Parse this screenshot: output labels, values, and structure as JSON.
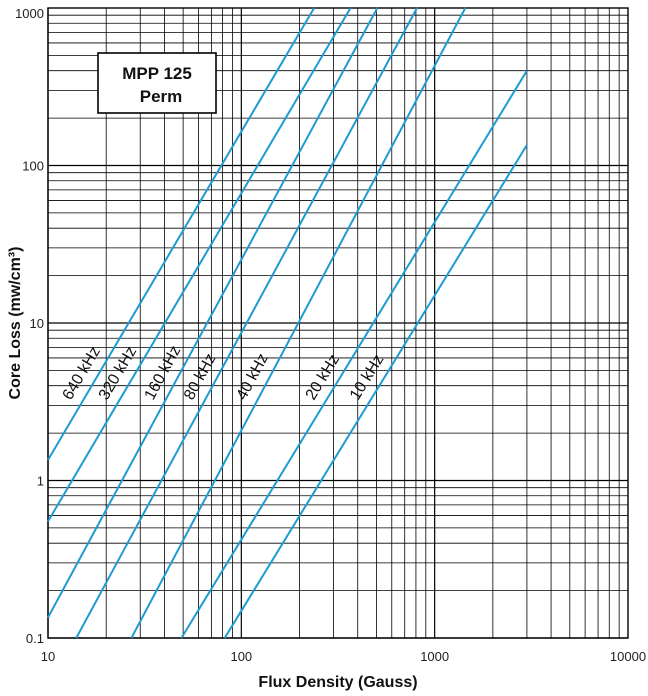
{
  "chart_data": {
    "type": "line",
    "title": "",
    "annotation": {
      "line1": "MPP 125",
      "line2": "Perm"
    },
    "xlabel": "Flux Density (Gauss)",
    "ylabel": "Core Loss (mw/cm³)",
    "x_scale": "log",
    "y_scale": "log",
    "xlim": [
      10,
      10000
    ],
    "ylim": [
      0.1,
      1000
    ],
    "x_tick_labels": [
      "10",
      "100",
      "1000",
      "10000"
    ],
    "y_tick_labels": [
      "0.1",
      "1",
      "10",
      "100",
      "1000"
    ],
    "grid": true,
    "series_color": "#1f9bd1",
    "series": [
      {
        "name": "640 kHz",
        "points": [
          [
            10,
            1.35
          ],
          [
            238,
            1000
          ]
        ]
      },
      {
        "name": "320 kHz",
        "points": [
          [
            10,
            0.55
          ],
          [
            367,
            1000
          ]
        ]
      },
      {
        "name": "160 kHz",
        "points": [
          [
            10,
            0.135
          ],
          [
            505,
            1000
          ]
        ]
      },
      {
        "name": "80 kHz",
        "points": [
          [
            14,
            0.1
          ],
          [
            810,
            1000
          ]
        ]
      },
      {
        "name": "40 kHz",
        "points": [
          [
            27,
            0.1
          ],
          [
            1440,
            1000
          ]
        ]
      },
      {
        "name": "20 kHz",
        "points": [
          [
            49,
            0.1
          ],
          [
            3000,
            400
          ]
        ]
      },
      {
        "name": "10 kHz",
        "points": [
          [
            82,
            0.1
          ],
          [
            3000,
            135
          ]
        ]
      }
    ]
  }
}
